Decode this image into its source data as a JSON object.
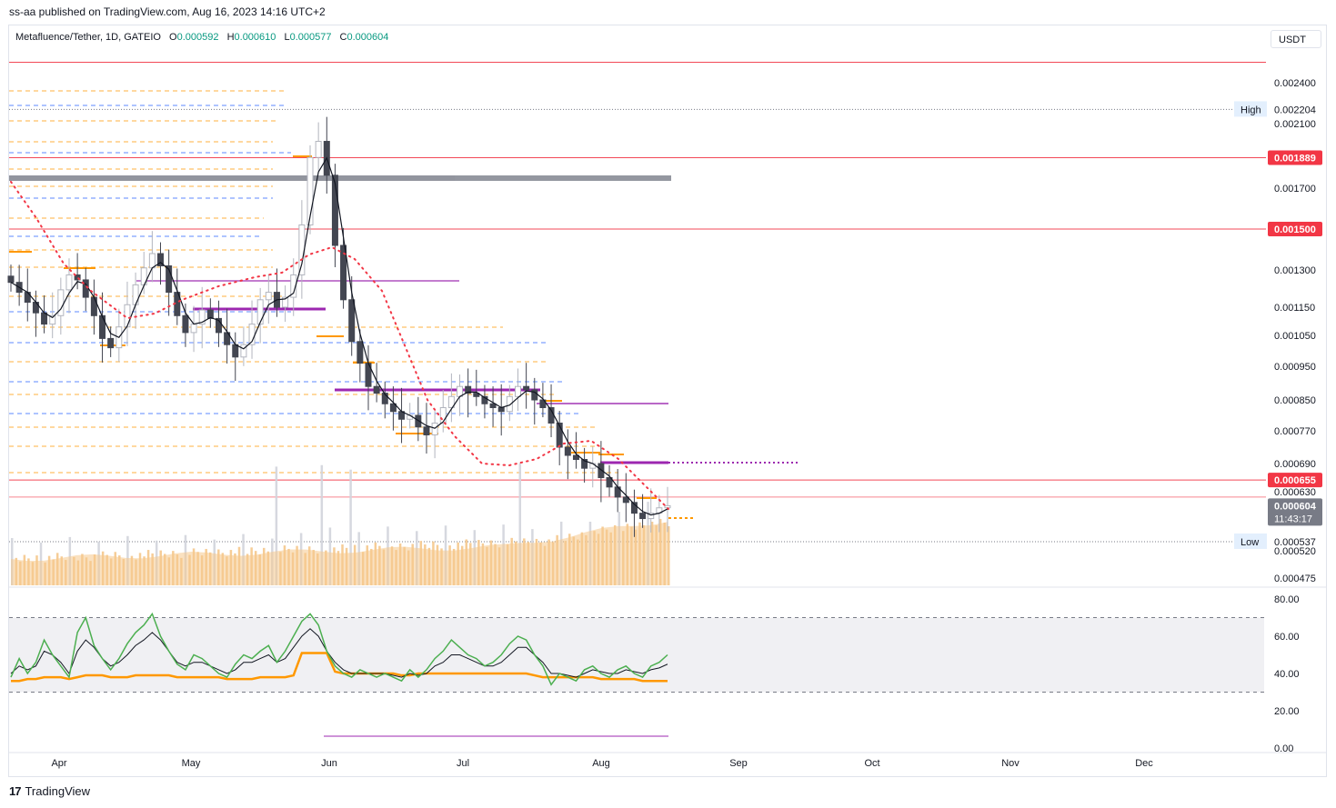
{
  "publisher": "ss-aa published on TradingView.com, Aug 16, 2023 14:16 UTC+2",
  "symbol": {
    "name": "Metafluence/Tether, 1D, GATEIO",
    "open_label": "O",
    "open": "0.000592",
    "high_label": "H",
    "high": "0.000610",
    "low_label": "L",
    "low": "0.000577",
    "close_label": "C",
    "close": "0.000604"
  },
  "currency": "USDT",
  "footer": {
    "brand": "TradingView",
    "logo_glyph": "17"
  },
  "colors": {
    "up": "#089981",
    "down": "#f23645",
    "candle_up": "#d1d4dc",
    "candle_dark": "#434651",
    "red_level": "#f23645",
    "orange": "#ff9800",
    "blue": "#2962ff",
    "purple": "#9c27b0",
    "rsi_green": "#4caf50",
    "rsi_orange": "#ff9800",
    "volume": "#f5c88c"
  },
  "chart_data": [
    {
      "type": "candlestick",
      "x_axis_labels": [
        "Apr",
        "May",
        "Jun",
        "Jul",
        "Aug",
        "Sep",
        "Oct",
        "Nov",
        "Dec"
      ],
      "y_ticks": [
        "0.002400",
        "0.002100",
        "0.001700",
        "0.001300",
        "0.001150",
        "0.001050",
        "0.000950",
        "0.000850",
        "0.000770",
        "0.000690",
        "0.000630",
        "0.000520",
        "0.000475"
      ],
      "y_tick_values": [
        0.0024,
        0.0021,
        0.0017,
        0.0013,
        0.00115,
        0.00105,
        0.00095,
        0.00085,
        0.00077,
        0.00069,
        0.00063,
        0.00052,
        0.000475
      ],
      "price_labels": [
        {
          "text": "0.001889",
          "value": 0.001889,
          "style": "red"
        },
        {
          "text": "0.001500",
          "value": 0.0015,
          "style": "red"
        },
        {
          "text": "0.000655",
          "value": 0.000655,
          "style": "red"
        },
        {
          "text": "0.000604",
          "value": 0.000604,
          "style": "gray",
          "sub": "11:43:17"
        }
      ],
      "markers": [
        {
          "label": "High",
          "text": "0.002204",
          "value": 0.002204
        },
        {
          "label": "Low",
          "text": "0.000537",
          "value": 0.000537
        }
      ],
      "horizontal_levels": [
        0.00255,
        0.001889,
        0.0015,
        0.000655,
        0.00062
      ],
      "close_series": [
        0.00125,
        0.00121,
        0.00117,
        0.00113,
        0.00109,
        0.00112,
        0.00122,
        0.00128,
        0.00126,
        0.00119,
        0.00112,
        0.00104,
        0.00101,
        0.00108,
        0.00116,
        0.00124,
        0.00131,
        0.00138,
        0.00132,
        0.00121,
        0.00112,
        0.00106,
        0.00109,
        0.00114,
        0.00111,
        0.00106,
        0.00102,
        0.00098,
        0.00102,
        0.00109,
        0.00118,
        0.00121,
        0.00115,
        0.00119,
        0.00128,
        0.00152,
        0.00189,
        0.00199,
        0.00178,
        0.00142,
        0.00118,
        0.00103,
        0.00096,
        0.00089,
        0.00087,
        0.00084,
        0.00082,
        0.0008,
        0.00081,
        0.00078,
        0.00076,
        0.00079,
        0.00083,
        0.00086,
        0.00089,
        0.00087,
        0.00086,
        0.00084,
        0.00083,
        0.00082,
        0.00086,
        0.00089,
        0.00088,
        0.00085,
        0.00083,
        0.00079,
        0.00073,
        0.00071,
        0.0007,
        0.00068,
        0.00069,
        0.00066,
        0.00064,
        0.00062,
        0.00061,
        0.00059,
        0.00058,
        0.00059,
        0.0006,
        0.000604
      ],
      "rsi_ticks": [
        "80.00",
        "60.00",
        "40.00",
        "20.00",
        "0.00"
      ],
      "rsi_tick_values": [
        80,
        60,
        40,
        20,
        0
      ],
      "rsi_green": [
        38,
        48,
        40,
        46,
        58,
        50,
        44,
        38,
        62,
        70,
        55,
        48,
        42,
        48,
        56,
        62,
        66,
        72,
        60,
        52,
        45,
        42,
        50,
        48,
        44,
        40,
        38,
        45,
        50,
        48,
        52,
        55,
        46,
        52,
        60,
        68,
        72,
        66,
        52,
        44,
        40,
        38,
        42,
        40,
        38,
        40,
        38,
        36,
        42,
        38,
        42,
        48,
        52,
        58,
        54,
        50,
        48,
        44,
        46,
        50,
        56,
        60,
        58,
        50,
        44,
        34,
        40,
        38,
        36,
        42,
        44,
        40,
        38,
        42,
        44,
        40,
        38,
        44,
        46,
        50
      ],
      "rsi_black": [
        40,
        44,
        42,
        44,
        52,
        50,
        46,
        40,
        52,
        58,
        54,
        48,
        44,
        46,
        50,
        55,
        58,
        62,
        58,
        52,
        46,
        44,
        46,
        46,
        44,
        42,
        40,
        42,
        46,
        46,
        48,
        50,
        46,
        48,
        54,
        60,
        64,
        60,
        52,
        46,
        42,
        40,
        40,
        40,
        40,
        40,
        39,
        38,
        40,
        39,
        40,
        44,
        46,
        50,
        50,
        48,
        46,
        44,
        44,
        46,
        50,
        54,
        54,
        50,
        46,
        40,
        40,
        39,
        38,
        40,
        42,
        41,
        40,
        40,
        42,
        41,
        40,
        42,
        43,
        45
      ],
      "rsi_orange": [
        36,
        36,
        37,
        37,
        38,
        38,
        38,
        37,
        38,
        39,
        39,
        39,
        38,
        38,
        38,
        39,
        39,
        39,
        39,
        39,
        38,
        38,
        38,
        38,
        38,
        38,
        37,
        37,
        37,
        37,
        38,
        38,
        38,
        38,
        39,
        51,
        51,
        51,
        51,
        41,
        40,
        40,
        40,
        40,
        40,
        40,
        40,
        39,
        39,
        40,
        40,
        40,
        40,
        40,
        40,
        40,
        40,
        40,
        40,
        40,
        40,
        40,
        40,
        39,
        38,
        38,
        38,
        38,
        38,
        38,
        38,
        37,
        37,
        37,
        37,
        37,
        36,
        36,
        36,
        36
      ],
      "rsi_bands": [
        70,
        30
      ]
    }
  ]
}
